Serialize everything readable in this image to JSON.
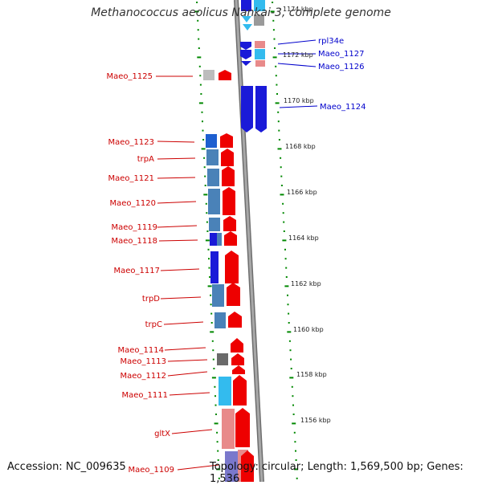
{
  "title": "Methanococcus aeolicus Nankai-3, complete genome",
  "footer": {
    "accession": "Accession: NC_009635",
    "topology": "Topology: circular; Length: 1,569,500 bp; Genes: 1,536"
  },
  "colors": {
    "left_label": "#cc0000",
    "right_label": "#0000cc",
    "tick": "#008800",
    "backbone": "#8a8a8a"
  },
  "kbp_labels": [
    "1174 kbp",
    "1172 kbp",
    "1170 kbp",
    "1168 kbp",
    "1166 kbp",
    "1164 kbp",
    "1162 kbp",
    "1160 kbp",
    "1158 kbp",
    "1156 kbp"
  ],
  "left_genes": [
    "Maeo_1125",
    "Maeo_1123",
    "trpA",
    "Maeo_1121",
    "Maeo_1120",
    "Maeo_1119",
    "Maeo_1118",
    "Maeo_1117",
    "trpD",
    "trpC",
    "Maeo_1114",
    "Maeo_1113",
    "Maeo_1112",
    "Maeo_1111",
    "gltX",
    "Maeo_1109"
  ],
  "right_genes": [
    "rpl34e",
    "Maeo_1127",
    "Maeo_1126",
    "Maeo_1124"
  ]
}
